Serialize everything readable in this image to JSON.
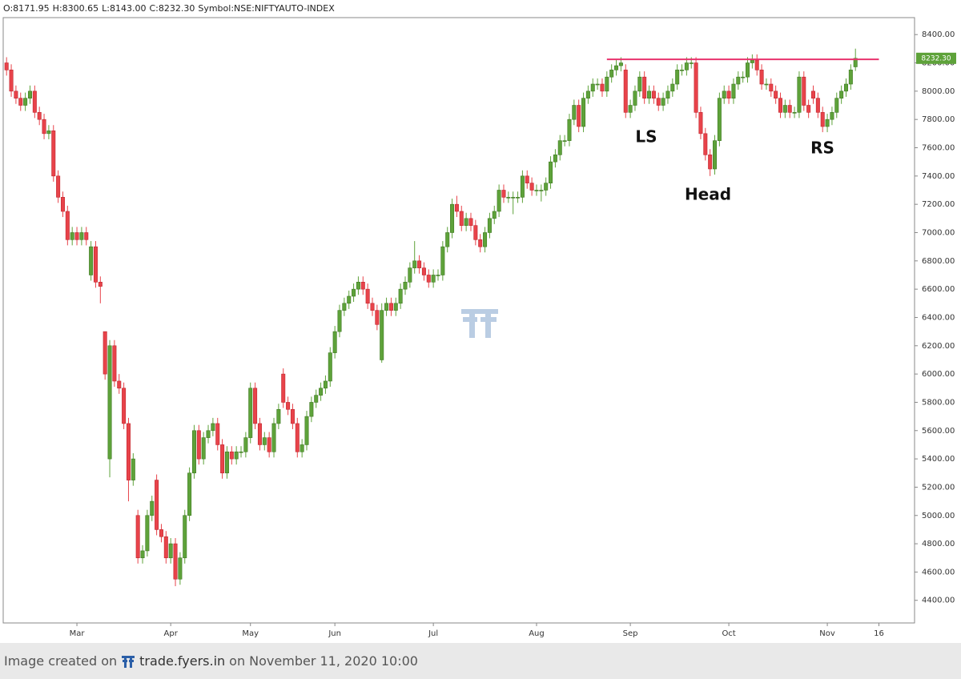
{
  "chart_data": {
    "type": "candlestick",
    "header": [
      "O:8171.95",
      "H:8300.65",
      "L:8143.00",
      "C:8232.30",
      "Symbol:NSE:NIFTYAUTO-INDEX"
    ],
    "last_price_label": "8232.30",
    "up_color": "#5ea23a",
    "down_color": "#e8434a",
    "ylim": [
      4240,
      8520
    ],
    "yticks": [
      {
        "value": 4400,
        "label": "4400.00"
      },
      {
        "value": 4600,
        "label": "4600.00"
      },
      {
        "value": 4800,
        "label": "4800.00"
      },
      {
        "value": 5000,
        "label": "5000.00"
      },
      {
        "value": 5200,
        "label": "5200.00"
      },
      {
        "value": 5400,
        "label": "5400.00"
      },
      {
        "value": 5600,
        "label": "5600.00"
      },
      {
        "value": 5800,
        "label": "5800.00"
      },
      {
        "value": 6000,
        "label": "6000.00"
      },
      {
        "value": 6200,
        "label": "6200.00"
      },
      {
        "value": 6400,
        "label": "6400.00"
      },
      {
        "value": 6600,
        "label": "6600.00"
      },
      {
        "value": 6800,
        "label": "6800.00"
      },
      {
        "value": 7000,
        "label": "7000.00"
      },
      {
        "value": 7200,
        "label": "7200.00"
      },
      {
        "value": 7400,
        "label": "7400.00"
      },
      {
        "value": 7600,
        "label": "7600.00"
      },
      {
        "value": 7800,
        "label": "7800.00"
      },
      {
        "value": 8000,
        "label": "8000.00"
      },
      {
        "value": 8200,
        "label": "8200.00"
      },
      {
        "value": 8400,
        "label": "8400.00"
      }
    ],
    "xlim": [
      -1.4,
      193.6
    ],
    "xticks": [
      {
        "value": 15,
        "label": "Mar"
      },
      {
        "value": 35,
        "label": "Apr"
      },
      {
        "value": 52,
        "label": "May"
      },
      {
        "value": 70,
        "label": "Jun"
      },
      {
        "value": 91,
        "label": "Jul"
      },
      {
        "value": 113,
        "label": "Aug"
      },
      {
        "value": 133,
        "label": "Sep"
      },
      {
        "value": 154,
        "label": "Oct"
      },
      {
        "value": 175,
        "label": "Nov"
      },
      {
        "value": 186,
        "label": "16"
      }
    ],
    "resistance": {
      "value": 8225,
      "start": 128,
      "end": 186,
      "color": "#e8336d"
    },
    "annotations": [
      "LS",
      "Head",
      "RS"
    ],
    "ohlc": [
      [
        8200,
        8240,
        8110,
        8150
      ],
      [
        8150,
        8190,
        7960,
        8000
      ],
      [
        8000,
        8040,
        7910,
        7950
      ],
      [
        7950,
        7990,
        7860,
        7900
      ],
      [
        7900,
        7990,
        7860,
        7950
      ],
      [
        7950,
        8040,
        7910,
        8000
      ],
      [
        8000,
        8040,
        7810,
        7850
      ],
      [
        7850,
        7890,
        7760,
        7800
      ],
      [
        7800,
        7840,
        7660,
        7700
      ],
      [
        7700,
        7760,
        7660,
        7720
      ],
      [
        7720,
        7760,
        7360,
        7400
      ],
      [
        7400,
        7440,
        7210,
        7250
      ],
      [
        7250,
        7290,
        7110,
        7150
      ],
      [
        7150,
        7190,
        6910,
        6950
      ],
      [
        6950,
        7040,
        6910,
        7000
      ],
      [
        7000,
        7040,
        6910,
        6950
      ],
      [
        6950,
        7040,
        6910,
        7000
      ],
      [
        7000,
        7040,
        6910,
        6950
      ],
      [
        6700,
        6940,
        6660,
        6900
      ],
      [
        6900,
        6940,
        6610,
        6650
      ],
      [
        6650,
        6690,
        6500,
        6620
      ],
      [
        6300,
        6300,
        5960,
        6000
      ],
      [
        5400,
        6240,
        5270,
        6200
      ],
      [
        6200,
        6240,
        5910,
        5950
      ],
      [
        5950,
        6000,
        5860,
        5900
      ],
      [
        5900,
        5940,
        5610,
        5650
      ],
      [
        5650,
        5690,
        5100,
        5250
      ],
      [
        5250,
        5440,
        5210,
        5400
      ],
      [
        5000,
        5040,
        4660,
        4700
      ],
      [
        4700,
        4790,
        4660,
        4750
      ],
      [
        4750,
        5040,
        4710,
        5000
      ],
      [
        5000,
        5140,
        4960,
        5100
      ],
      [
        5250,
        5290,
        4860,
        4900
      ],
      [
        4900,
        4940,
        4810,
        4850
      ],
      [
        4850,
        4890,
        4660,
        4700
      ],
      [
        4700,
        4840,
        4660,
        4800
      ],
      [
        4800,
        4840,
        4500,
        4550
      ],
      [
        4550,
        4740,
        4510,
        4700
      ],
      [
        4700,
        5040,
        4660,
        5000
      ],
      [
        5000,
        5340,
        4960,
        5300
      ],
      [
        5300,
        5640,
        5260,
        5600
      ],
      [
        5600,
        5640,
        5360,
        5400
      ],
      [
        5400,
        5590,
        5360,
        5550
      ],
      [
        5550,
        5640,
        5510,
        5600
      ],
      [
        5600,
        5690,
        5560,
        5650
      ],
      [
        5650,
        5690,
        5460,
        5500
      ],
      [
        5500,
        5540,
        5260,
        5300
      ],
      [
        5300,
        5490,
        5260,
        5450
      ],
      [
        5450,
        5490,
        5360,
        5400
      ],
      [
        5400,
        5490,
        5360,
        5450
      ],
      [
        5450,
        5490,
        5410,
        5450
      ],
      [
        5450,
        5590,
        5410,
        5550
      ],
      [
        5550,
        5940,
        5510,
        5900
      ],
      [
        5900,
        5940,
        5610,
        5650
      ],
      [
        5650,
        5690,
        5460,
        5500
      ],
      [
        5500,
        5590,
        5460,
        5550
      ],
      [
        5550,
        5590,
        5410,
        5450
      ],
      [
        5450,
        5690,
        5410,
        5650
      ],
      [
        5650,
        5790,
        5610,
        5750
      ],
      [
        6000,
        6040,
        5760,
        5800
      ],
      [
        5800,
        5840,
        5710,
        5750
      ],
      [
        5750,
        5790,
        5610,
        5650
      ],
      [
        5650,
        5690,
        5410,
        5450
      ],
      [
        5450,
        5540,
        5410,
        5500
      ],
      [
        5500,
        5740,
        5460,
        5700
      ],
      [
        5700,
        5840,
        5660,
        5800
      ],
      [
        5800,
        5890,
        5760,
        5850
      ],
      [
        5850,
        5940,
        5810,
        5900
      ],
      [
        5900,
        5990,
        5860,
        5950
      ],
      [
        5950,
        6190,
        5910,
        6150
      ],
      [
        6150,
        6340,
        6110,
        6300
      ],
      [
        6300,
        6490,
        6260,
        6450
      ],
      [
        6450,
        6540,
        6410,
        6500
      ],
      [
        6500,
        6590,
        6460,
        6550
      ],
      [
        6550,
        6640,
        6510,
        6600
      ],
      [
        6600,
        6690,
        6560,
        6650
      ],
      [
        6650,
        6690,
        6560,
        6600
      ],
      [
        6600,
        6640,
        6460,
        6500
      ],
      [
        6500,
        6540,
        6410,
        6450
      ],
      [
        6450,
        6490,
        6310,
        6350
      ],
      [
        6100,
        6500,
        6080,
        6450
      ],
      [
        6450,
        6540,
        6410,
        6500
      ],
      [
        6500,
        6540,
        6410,
        6450
      ],
      [
        6450,
        6540,
        6410,
        6500
      ],
      [
        6500,
        6640,
        6460,
        6600
      ],
      [
        6600,
        6690,
        6560,
        6650
      ],
      [
        6650,
        6790,
        6610,
        6750
      ],
      [
        6750,
        6940,
        6710,
        6800
      ],
      [
        6800,
        6840,
        6710,
        6750
      ],
      [
        6750,
        6790,
        6660,
        6700
      ],
      [
        6700,
        6740,
        6610,
        6650
      ],
      [
        6650,
        6740,
        6610,
        6700
      ],
      [
        6700,
        6740,
        6660,
        6700
      ],
      [
        6700,
        6940,
        6660,
        6900
      ],
      [
        6900,
        7040,
        6860,
        7000
      ],
      [
        7000,
        7240,
        6960,
        7200
      ],
      [
        7200,
        7260,
        7110,
        7150
      ],
      [
        7150,
        7190,
        7010,
        7050
      ],
      [
        7050,
        7140,
        7010,
        7100
      ],
      [
        7100,
        7140,
        7010,
        7050
      ],
      [
        7050,
        7090,
        6910,
        6950
      ],
      [
        6950,
        6990,
        6860,
        6900
      ],
      [
        6900,
        7040,
        6860,
        7000
      ],
      [
        7000,
        7140,
        6960,
        7100
      ],
      [
        7100,
        7190,
        7060,
        7150
      ],
      [
        7150,
        7340,
        7110,
        7300
      ],
      [
        7300,
        7340,
        7210,
        7250
      ],
      [
        7250,
        7290,
        7210,
        7250
      ],
      [
        7250,
        7290,
        7130,
        7250
      ],
      [
        7250,
        7290,
        7210,
        7250
      ],
      [
        7250,
        7440,
        7210,
        7400
      ],
      [
        7400,
        7440,
        7310,
        7350
      ],
      [
        7350,
        7390,
        7260,
        7300
      ],
      [
        7300,
        7340,
        7260,
        7300
      ],
      [
        7300,
        7340,
        7220,
        7300
      ],
      [
        7300,
        7390,
        7260,
        7350
      ],
      [
        7350,
        7540,
        7310,
        7500
      ],
      [
        7500,
        7590,
        7460,
        7550
      ],
      [
        7550,
        7690,
        7510,
        7650
      ],
      [
        7650,
        7690,
        7610,
        7650
      ],
      [
        7650,
        7840,
        7610,
        7800
      ],
      [
        7800,
        7940,
        7760,
        7900
      ],
      [
        7900,
        7940,
        7710,
        7750
      ],
      [
        7750,
        7990,
        7710,
        7950
      ],
      [
        7950,
        8040,
        7910,
        8000
      ],
      [
        8000,
        8090,
        7960,
        8050
      ],
      [
        8050,
        8090,
        8010,
        8050
      ],
      [
        8050,
        8090,
        7960,
        8000
      ],
      [
        8000,
        8140,
        7960,
        8100
      ],
      [
        8100,
        8190,
        8060,
        8150
      ],
      [
        8150,
        8220,
        8110,
        8180
      ],
      [
        8180,
        8240,
        8140,
        8200
      ],
      [
        8150,
        8190,
        7810,
        7850
      ],
      [
        7850,
        7940,
        7810,
        7900
      ],
      [
        7900,
        8040,
        7860,
        8000
      ],
      [
        8000,
        8140,
        7960,
        8100
      ],
      [
        8100,
        8140,
        7910,
        7950
      ],
      [
        7950,
        8040,
        7910,
        8000
      ],
      [
        8000,
        8040,
        7910,
        7950
      ],
      [
        7950,
        7990,
        7860,
        7900
      ],
      [
        7900,
        7990,
        7860,
        7950
      ],
      [
        7950,
        8040,
        7910,
        8000
      ],
      [
        8000,
        8090,
        7960,
        8050
      ],
      [
        8050,
        8190,
        8010,
        8150
      ],
      [
        8150,
        8190,
        8110,
        8150
      ],
      [
        8150,
        8240,
        8110,
        8200
      ],
      [
        8200,
        8240,
        8160,
        8200
      ],
      [
        8200,
        8240,
        7810,
        7850
      ],
      [
        7850,
        7890,
        7660,
        7700
      ],
      [
        7700,
        7740,
        7510,
        7550
      ],
      [
        7550,
        7590,
        7400,
        7450
      ],
      [
        7450,
        7690,
        7410,
        7650
      ],
      [
        7650,
        7990,
        7610,
        7950
      ],
      [
        7950,
        8040,
        7910,
        8000
      ],
      [
        8000,
        8040,
        7910,
        7950
      ],
      [
        7950,
        8090,
        7910,
        8050
      ],
      [
        8050,
        8140,
        8010,
        8100
      ],
      [
        8100,
        8140,
        8060,
        8100
      ],
      [
        8100,
        8240,
        8060,
        8200
      ],
      [
        8200,
        8260,
        8160,
        8220
      ],
      [
        8220,
        8260,
        8110,
        8150
      ],
      [
        8150,
        8190,
        8010,
        8050
      ],
      [
        8050,
        8090,
        8010,
        8050
      ],
      [
        8050,
        8090,
        7960,
        8000
      ],
      [
        8000,
        8040,
        7910,
        7950
      ],
      [
        7950,
        7990,
        7810,
        7850
      ],
      [
        7850,
        7940,
        7810,
        7900
      ],
      [
        7900,
        7940,
        7810,
        7850
      ],
      [
        7850,
        7890,
        7810,
        7850
      ],
      [
        7850,
        8140,
        7810,
        8100
      ],
      [
        8100,
        8140,
        7860,
        7900
      ],
      [
        7900,
        7940,
        7810,
        7850
      ],
      [
        8000,
        8040,
        7910,
        7950
      ],
      [
        7950,
        7990,
        7810,
        7850
      ],
      [
        7850,
        7890,
        7710,
        7750
      ],
      [
        7750,
        7840,
        7710,
        7800
      ],
      [
        7800,
        7890,
        7760,
        7850
      ],
      [
        7850,
        7990,
        7810,
        7950
      ],
      [
        7950,
        8040,
        7910,
        8000
      ],
      [
        8000,
        8090,
        7960,
        8050
      ],
      [
        8050,
        8190,
        8010,
        8150
      ],
      [
        8171.95,
        8300.65,
        8143,
        8232.3
      ]
    ]
  },
  "footer": {
    "prefix": "Image created on",
    "site": "trade.fyers.in",
    "suffix": "on November 11, 2020 10:00"
  }
}
